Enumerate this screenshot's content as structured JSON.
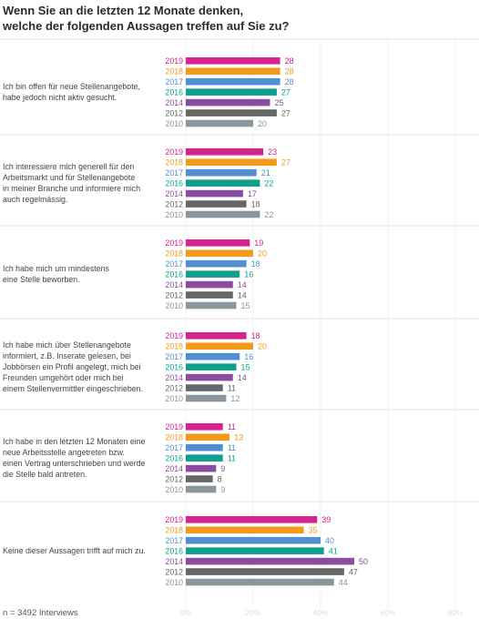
{
  "title": {
    "line1": "Wenn Sie an die letzten 12 Monate denken,",
    "line2": "welche der folgenden Aussagen treffen auf Sie zu?"
  },
  "footnote": "n = 3492 Interviews",
  "colors": {
    "2019": "#d6218e",
    "2018": "#f39a1b",
    "2017": "#4f8fcf",
    "2016": "#0e9f8e",
    "2014": "#8a4c9e",
    "2012": "#666666",
    "2010": "#8a959c"
  },
  "chart_data": {
    "type": "bar",
    "orientation": "horizontal",
    "years": [
      "2019",
      "2018",
      "2017",
      "2016",
      "2014",
      "2012",
      "2010"
    ],
    "xlim": [
      0,
      60
    ],
    "xticks": [
      "0%",
      "20%",
      "40%",
      "60%",
      "80%"
    ],
    "groups": [
      {
        "label": "Ich bin offen für neue Stellenangebote, habe jedoch nicht aktiv gesucht.",
        "lines": [
          "Ich bin offen für neue Stellenangebote,",
          "habe jedoch nicht aktiv gesucht."
        ],
        "values": [
          28,
          28,
          28,
          27,
          25,
          27,
          20
        ]
      },
      {
        "label": "Ich interessiere mich generell für den Arbeitsmarkt und für Stellenangebote in meiner Branche und informiere mich auch regelmässig.",
        "lines": [
          "Ich interessiere mich generell für den",
          "Arbeitsmarkt und für Stellenangebote",
          "in meiner Branche und informiere mich",
          "auch regelmässig."
        ],
        "values": [
          23,
          27,
          21,
          22,
          17,
          18,
          22
        ]
      },
      {
        "label": "Ich habe mich um mindestens eine Stelle beworben.",
        "lines": [
          "Ich habe mich um mindestens",
          "eine Stelle beworben."
        ],
        "values": [
          19,
          20,
          18,
          16,
          14,
          14,
          15
        ]
      },
      {
        "label": "Ich habe mich über Stellenangebote informiert, z.B. Inserate gelesen, bei Jobbörsen ein Profil angelegt, mich bei Freunden umgehört oder mich bei einem Stellenvermittler eingeschrieben.",
        "lines": [
          "Ich habe mich über Stellenangebote",
          "informiert, z.B. Inserate gelesen, bei",
          "Jobbörsen ein Profil angelegt, mich bei",
          "Freunden umgehört oder mich bei",
          "einem Stellenvermittler eingeschrieben."
        ],
        "values": [
          18,
          20,
          16,
          15,
          14,
          11,
          12
        ]
      },
      {
        "label": "Ich habe in den letzten 12 Monaten eine neue Arbeitsstelle angetreten bzw. einen Vertrag unterschrieben und werde die Stelle bald antreten.",
        "lines": [
          "Ich habe in den letzten 12 Monaten eine",
          "neue Arbeitsstelle angetreten bzw.",
          "einen Vertrag unterschrieben und werde",
          "die Stelle bald antreten."
        ],
        "values": [
          11,
          13,
          11,
          11,
          9,
          8,
          9
        ]
      },
      {
        "label": "Keine dieser Aussagen trifft auf mich zu.",
        "lines": [
          "Keine dieser Aussagen trifft auf mich zu."
        ],
        "values": [
          39,
          35,
          40,
          41,
          50,
          47,
          44
        ]
      }
    ]
  }
}
